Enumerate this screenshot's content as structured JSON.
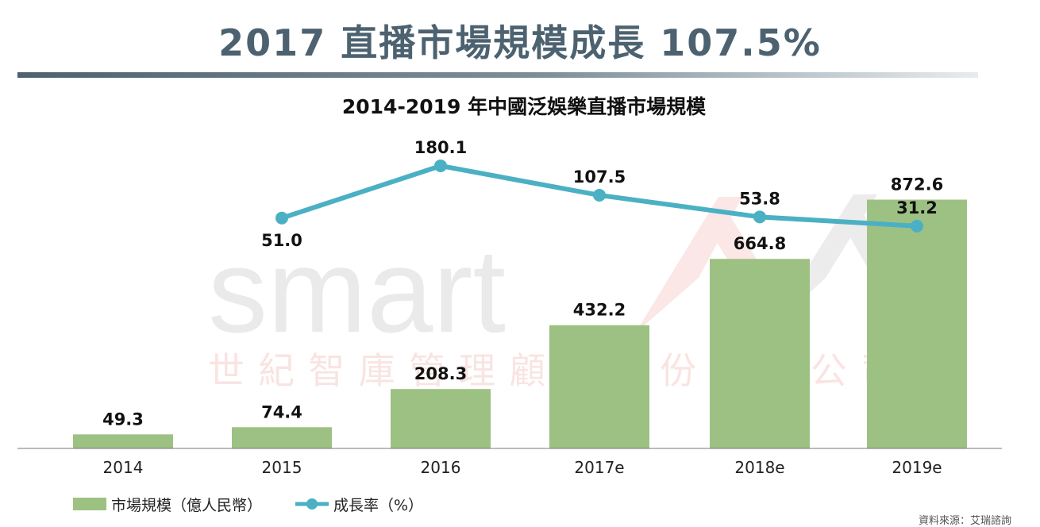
{
  "header": {
    "title": "2017 直播市場規模成長 107.5%"
  },
  "watermark": {
    "brand": "smart",
    "company": "世紀智庫管理顧問股份有限公司"
  },
  "source_note": "資料來源：艾瑞諮詢",
  "colors": {
    "bar": "#9dc183",
    "line": "#4bb0c4",
    "headline": "#4d6270",
    "watermark_red": "#e8928c"
  },
  "chart_data": {
    "type": "bar+line",
    "title": "2014-2019 年中國泛娛樂直播市場規模",
    "categories": [
      "2014",
      "2015",
      "2016",
      "2017e",
      "2018e",
      "2019e"
    ],
    "series": [
      {
        "name": "市場規模（億人民幣）",
        "type": "bar",
        "values": [
          49.3,
          74.4,
          208.3,
          432.2,
          664.8,
          872.6
        ],
        "labels": [
          "49.3",
          "74.4",
          "208.3",
          "432.2",
          "664.8",
          "872.6"
        ]
      },
      {
        "name": "成長率（%）",
        "type": "line",
        "values": [
          null,
          51.0,
          180.1,
          107.5,
          53.8,
          31.2
        ],
        "labels": [
          "",
          "51.0",
          "180.1",
          "107.5",
          "53.8",
          "31.2"
        ]
      }
    ],
    "bar_axis": {
      "ylim": [
        0,
        1030
      ]
    },
    "line_axis": {
      "ylim": [
        25,
        182
      ]
    },
    "legend": "bottom-left",
    "grid": false
  }
}
